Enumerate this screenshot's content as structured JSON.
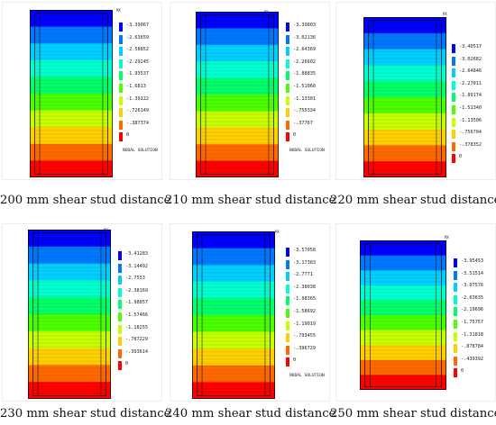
{
  "panels": [
    {
      "caption": "200 mm shear stud distance",
      "values": [
        "-3.39067",
        "-2.63659",
        "-2.58852",
        "-2.29245",
        "-1.93537",
        "-1.6813",
        "-1.39122",
        "-.726149",
        "-.387374",
        "0"
      ],
      "nodal_label": "NODAL SOLUTION",
      "tag": "MX"
    },
    {
      "caption": "210 mm shear stud distance",
      "values": [
        "-3.39803",
        "-3.02136",
        "-2.64369",
        "-2.26602",
        "-1.88835",
        "-1.51068",
        "-1.13301",
        "-.755334",
        "-.37767",
        "0"
      ],
      "nodal_label": "NODAL SOLUTION",
      "tag": "MX"
    },
    {
      "caption": "220 mm shear stud distance",
      "values": [
        "-3.40517",
        "-3.02682",
        "-2.64846",
        "-2.27011",
        "-1.89174",
        "-1.51340",
        "-1.13506",
        "-.756704",
        "-.378352",
        "0"
      ],
      "nodal_label": "",
      "tag": "MX"
    },
    {
      "caption": "230 mm shear stud distance",
      "values": [
        "-3.41283",
        "-3.14492",
        "-2.7553",
        "-2.38169",
        "-1.98857",
        "-1.57466",
        "-1.18255",
        "-.787229",
        "-.393614",
        "0"
      ],
      "nodal_label": "",
      "tag": "MX"
    },
    {
      "caption": "240 mm shear stud distance",
      "values": [
        "-3.57058",
        "-3.17383",
        "-2.7771",
        "-2.38038",
        "-1.98365",
        "-1.58692",
        "-1.19019",
        "-.793455",
        "-.396729",
        "0"
      ],
      "nodal_label": "NODAL SOLUTION",
      "tag": "MX"
    },
    {
      "caption": "250 mm shear stud distance",
      "values": [
        "-3.95453",
        "-3.51514",
        "-3.07576",
        "-2.63635",
        "-2.19696",
        "-1.75757",
        "-1.31818",
        "-.878784",
        "-.439392",
        "0"
      ],
      "nodal_label": "",
      "tag": "MX"
    }
  ],
  "colors": {
    "scale": [
      "#0000ff",
      "#0077ff",
      "#00cfff",
      "#00ffd0",
      "#00ff6a",
      "#4cff00",
      "#c8ff00",
      "#ffd000",
      "#ff6a00",
      "#ff0000"
    ]
  }
}
